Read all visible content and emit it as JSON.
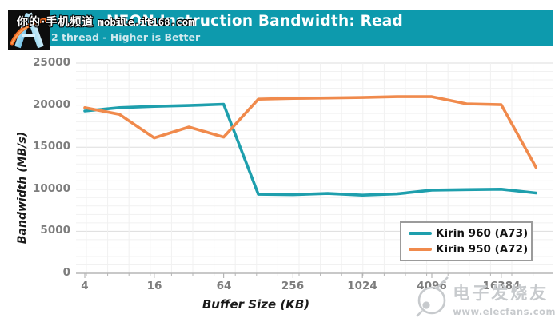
{
  "header": {
    "title": "NEON Instruction Bandwidth: Read",
    "subtitle": "2 thread - Higher is Better",
    "logo": "anandtech-a-logo",
    "bg_color": "#0D9AAD"
  },
  "watermarks": {
    "top_left": {
      "site_name": "你的·手机频道",
      "site_url": "mobile.it168.com"
    },
    "bottom_right": {
      "site_name": "电子发烧友",
      "site_url": "www.elecfans.com",
      "icon": "elecfans-electron-icon"
    }
  },
  "chart_data": {
    "type": "line",
    "title": "NEON Instruction Bandwidth: Read",
    "subtitle": "2 thread - Higher is Better",
    "xlabel": "Buffer Size (KB)",
    "ylabel": "Bandwidth (MB/s)",
    "x_scale": "log2",
    "grid": true,
    "legend_position": "lower right",
    "x": [
      4,
      8,
      16,
      32,
      64,
      128,
      256,
      512,
      1024,
      2048,
      4096,
      8192,
      16384,
      32768
    ],
    "x_tick_values": [
      4,
      16,
      64,
      256,
      1024,
      4096,
      16384
    ],
    "x_tick_labels": [
      "4",
      "16",
      "64",
      "256",
      "1024",
      "4096",
      "16384"
    ],
    "y_ticks": [
      0,
      5000,
      10000,
      15000,
      20000,
      25000
    ],
    "ylim": [
      0,
      25000
    ],
    "series": [
      {
        "name": "Kirin 960 (A73)",
        "color": "#1E9FAD",
        "values": [
          19300,
          19700,
          19850,
          19950,
          20100,
          9400,
          9350,
          9500,
          9300,
          9450,
          9900,
          9950,
          10000,
          9550
        ]
      },
      {
        "name": "Kirin 950 (A72)",
        "color": "#F08A4C",
        "values": [
          19700,
          18900,
          16100,
          17400,
          16200,
          20700,
          20800,
          20850,
          20900,
          21000,
          21000,
          20150,
          20050,
          12600
        ]
      }
    ]
  }
}
